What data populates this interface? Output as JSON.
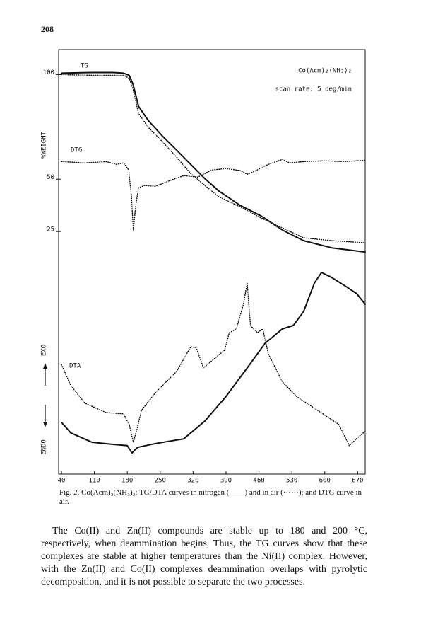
{
  "page_number": "208",
  "chart_data": {
    "type": "line",
    "ylabel": "%WEIGHT",
    "y2label_top": "EXO",
    "y2label_bottom": "ENDO",
    "annotations": [
      "TG",
      "DTG",
      "DTA",
      "Co(Acm)₂(NH₃)₂",
      "scan rate: 5 deg/min"
    ],
    "xlim": [
      34,
      686
    ],
    "xticks": [
      40,
      110,
      180,
      250,
      320,
      390,
      460,
      530,
      600,
      670
    ],
    "ylim": [
      -91,
      112
    ],
    "yticks": [
      25,
      50,
      100
    ],
    "y2lim": [
      0,
      100
    ],
    "series": [
      {
        "color": "#111111",
        "style": "solid",
        "x": [
          40,
          105,
          150,
          172,
          184,
          192,
          204,
          225,
          255,
          285,
          315,
          345,
          375,
          420,
          465,
          510,
          555,
          615,
          686
        ],
        "values": [
          100.7,
          101,
          101,
          100.7,
          99.7,
          95.6,
          84.8,
          78,
          70.6,
          63.9,
          57.1,
          50.3,
          44.3,
          37.5,
          32.4,
          25.7,
          20.6,
          17.2,
          15.2
        ]
      },
      {
        "color": "#111111",
        "style": "dotted",
        "x": [
          40,
          105,
          150,
          172,
          184,
          192,
          204,
          225,
          255,
          285,
          315,
          345,
          375,
          420,
          465,
          510,
          555,
          615,
          686
        ],
        "values": [
          100,
          99.7,
          99.7,
          99.7,
          98.3,
          93.2,
          81.4,
          74.7,
          67.9,
          60.5,
          52.7,
          47,
          41.6,
          36.8,
          31.4,
          26.7,
          22,
          20.6,
          19.6
        ]
      },
      {
        "color": "#111111",
        "style": "dotted",
        "x": [
          40,
          90,
          135,
          157,
          172,
          183,
          189,
          193,
          198,
          204,
          217,
          240,
          270,
          300,
          330,
          360,
          390,
          420,
          435,
          450,
          480,
          510,
          525,
          555,
          600,
          645,
          686
        ],
        "values": [
          58.4,
          57.8,
          58.4,
          57.1,
          57.8,
          54.4,
          40.9,
          25.7,
          37.5,
          45.9,
          47,
          46.6,
          49.3,
          51.7,
          51,
          54.4,
          55.1,
          54.1,
          52.4,
          53.7,
          57.1,
          59.5,
          57.8,
          58.4,
          58.8,
          58.4,
          59.1
        ]
      },
      {
        "color": "#111111",
        "style": "solid",
        "axis": "y2",
        "x": [
          40,
          60,
          105,
          150,
          180,
          190,
          202,
          240,
          300,
          345,
          390,
          435,
          473,
          510,
          533,
          555,
          578,
          593,
          615,
          645,
          668,
          686
        ],
        "values": [
          12.2,
          9.7,
          7.5,
          7,
          6.7,
          5,
          6.3,
          7.2,
          8.3,
          12.5,
          18.3,
          25,
          30.8,
          34.2,
          35,
          38.3,
          45,
          47.5,
          46.3,
          44.2,
          42.5,
          40
        ]
      },
      {
        "color": "#111111",
        "style": "dotted",
        "axis": "y2",
        "x": [
          40,
          60,
          90,
          135,
          172,
          184,
          193,
          201,
          210,
          240,
          285,
          315,
          327,
          342,
          360,
          387,
          397,
          412,
          427,
          435,
          442,
          457,
          468,
          480,
          510,
          540,
          585,
          630,
          652,
          667,
          685
        ],
        "values": [
          25.8,
          20.8,
          16.7,
          14.5,
          14.2,
          11.7,
          7.5,
          10.8,
          15,
          19.2,
          24.2,
          30,
          29.7,
          25,
          26.7,
          29.2,
          33.3,
          34.2,
          40,
          45,
          35,
          33.3,
          34.2,
          28.3,
          21.7,
          18.3,
          15,
          11.7,
          6.7,
          8.3,
          10
        ]
      }
    ]
  },
  "caption": "Fig. 2. Co(Acm)₂(NH₃)₂: TG/DTA curves in nitrogen (——) and in air (······); and DTG curve in air.",
  "body": "The Co(II) and Zn(II) compounds are stable up to 180 and 200 °C, respectively, when deammination begins. Thus, the TG curves show that these complexes are stable at higher temperatures than the Ni(II) complex. However, with the Zn(II) and Co(II) complexes deammination overlaps with pyrolytic decomposition, and it is not possible to separate the two processes."
}
